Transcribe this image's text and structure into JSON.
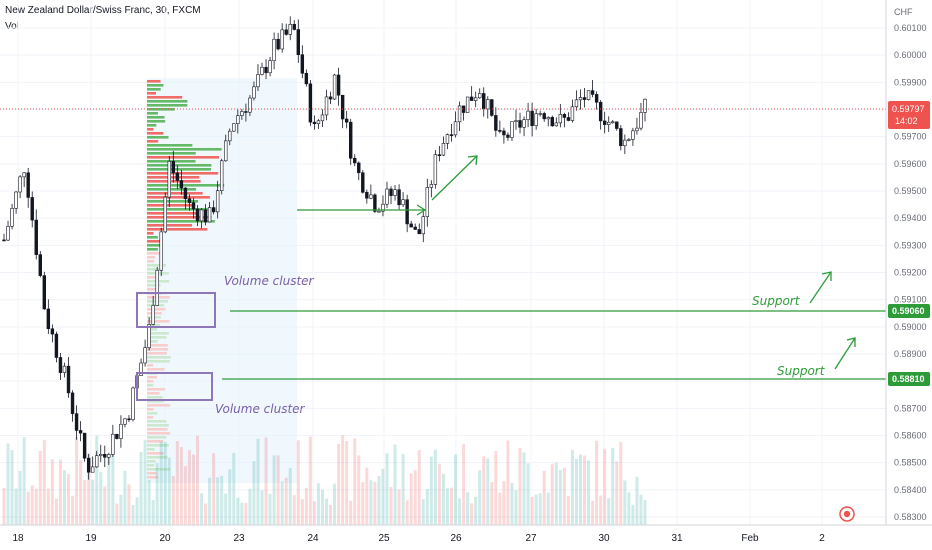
{
  "header": {
    "symbol_title": "New Zealand Dollar/Swiss Franc, 30, FXCM",
    "volume_title": "Vol"
  },
  "chart_data": {
    "type": "candlestick",
    "currency_label": "CHF",
    "y_range": [
      0.5828,
      0.6022
    ],
    "y_ticks": [
      "0.60100",
      "0.60000",
      "0.59900",
      "0.59800",
      "0.59700",
      "0.59600",
      "0.59500",
      "0.59400",
      "0.59300",
      "0.59200",
      "0.59100",
      "0.59000",
      "0.58900",
      "0.58800",
      "0.58700",
      "0.58600",
      "0.58500",
      "0.58400",
      "0.58300"
    ],
    "x_ticks": [
      "18",
      "19",
      "20",
      "23",
      "24",
      "25",
      "26",
      "27",
      "30",
      "31",
      "Feb",
      "2"
    ],
    "current_price": "0.59797",
    "countdown": "14:02",
    "price_path": [
      {
        "day": "18.0",
        "price": 0.5932
      },
      {
        "day": "18.5",
        "price": 0.596
      },
      {
        "day": "19.0",
        "price": 0.5905
      },
      {
        "day": "19.3",
        "price": 0.588
      },
      {
        "day": "19.6",
        "price": 0.5848
      },
      {
        "day": "19.9",
        "price": 0.5856
      },
      {
        "day": "20.1",
        "price": 0.5868
      },
      {
        "day": "20.3",
        "price": 0.5898
      },
      {
        "day": "20.6",
        "price": 0.596
      },
      {
        "day": "20.9",
        "price": 0.5944
      },
      {
        "day": "21.2",
        "price": 0.594
      },
      {
        "day": "21.5",
        "price": 0.5975
      },
      {
        "day": "21.8",
        "price": 0.5985
      },
      {
        "day": "22.2",
        "price": 0.6002
      },
      {
        "day": "22.6",
        "price": 0.601
      },
      {
        "day": "22.9",
        "price": 0.5972
      },
      {
        "day": "23.2",
        "price": 0.5992
      },
      {
        "day": "23.6",
        "price": 0.5958
      },
      {
        "day": "23.9",
        "price": 0.5945
      },
      {
        "day": "24.2",
        "price": 0.595
      },
      {
        "day": "24.6",
        "price": 0.5932
      },
      {
        "day": "25.0",
        "price": 0.5965
      },
      {
        "day": "25.4",
        "price": 0.598
      },
      {
        "day": "25.8",
        "price": 0.5988
      },
      {
        "day": "26.2",
        "price": 0.5968
      },
      {
        "day": "26.6",
        "price": 0.5975
      },
      {
        "day": "27.0",
        "price": 0.598
      },
      {
        "day": "27.4",
        "price": 0.5975
      },
      {
        "day": "27.8",
        "price": 0.5985
      },
      {
        "day": "28.2",
        "price": 0.5978
      },
      {
        "day": "28.5",
        "price": 0.5968
      },
      {
        "day": "28.8",
        "price": 0.598
      }
    ],
    "support_levels": [
      {
        "label": "Support",
        "price": "0.59060",
        "color": "#2e9b39"
      },
      {
        "label": "Support",
        "price": "0.58810",
        "color": "#2e9b39"
      }
    ],
    "annotations": {
      "volume_cluster_label_1": "Volume cluster",
      "volume_cluster_label_2": "Volume cluster"
    },
    "colors": {
      "up": "#26a69a",
      "down": "#ef5350",
      "candle": "#131722",
      "annotation": "#2e9b39",
      "cluster_box": "#8e76b8",
      "price_badge": "#ef5350",
      "profile_up": "#4caf50",
      "profile_down": "#ef5350"
    }
  }
}
